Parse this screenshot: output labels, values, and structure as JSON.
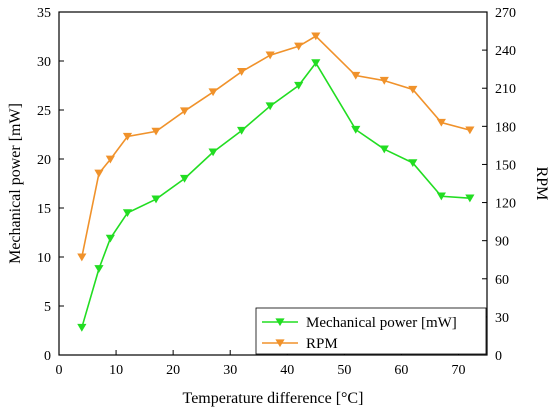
{
  "chart_data": {
    "type": "line",
    "xlabel": "Temperature difference [°C]",
    "ylabel_left": "Mechanical power [mW]",
    "ylabel_right": "RPM",
    "xlim": [
      0,
      75
    ],
    "xticks": [
      0,
      10,
      20,
      30,
      40,
      50,
      60,
      70
    ],
    "ylim_left": [
      0,
      35
    ],
    "yticks_left": [
      0,
      5,
      10,
      15,
      20,
      25,
      30,
      35
    ],
    "ylim_right": [
      0,
      270
    ],
    "yticks_right": [
      0,
      30,
      60,
      90,
      120,
      150,
      180,
      210,
      240,
      270
    ],
    "grid": false,
    "legend_position": "bottom-right",
    "series": [
      {
        "name": "Mechanical power [mW]",
        "axis": "left",
        "color": "#22dd22",
        "marker": "triangle-down",
        "x": [
          4,
          7,
          9,
          12,
          17,
          22,
          27,
          32,
          37,
          42,
          45,
          52,
          57,
          62,
          67,
          72
        ],
        "y": [
          2.8,
          8.8,
          11.9,
          14.5,
          15.9,
          18.0,
          20.7,
          22.9,
          25.4,
          27.5,
          29.8,
          23.0,
          21.0,
          19.6,
          16.2,
          16.0
        ]
      },
      {
        "name": "RPM",
        "axis": "right",
        "color": "#f0922b",
        "marker": "triangle-down",
        "x": [
          4,
          7,
          9,
          12,
          17,
          22,
          27,
          32,
          37,
          42,
          45,
          52,
          57,
          62,
          67,
          72
        ],
        "y": [
          77,
          143,
          154,
          172,
          176,
          192,
          207,
          223,
          236,
          243,
          251,
          220,
          216,
          209,
          183,
          177
        ]
      }
    ]
  }
}
